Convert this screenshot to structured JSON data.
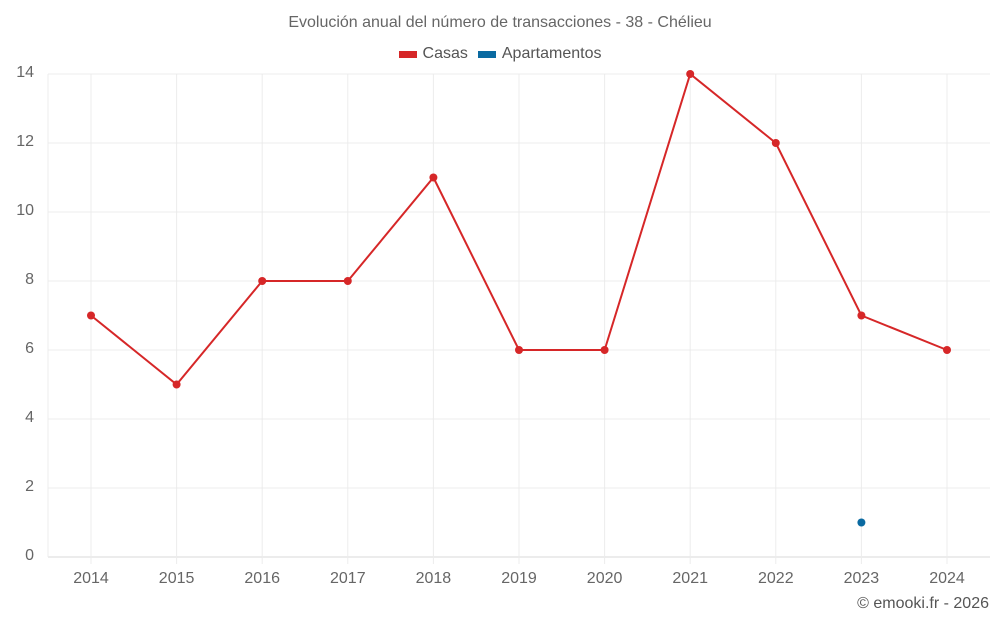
{
  "title": "Evolución anual del número de transacciones - 38 - Chélieu",
  "legend": [
    {
      "label": "Casas",
      "color": "#d62728"
    },
    {
      "label": "Apartamentos",
      "color": "#0a6aa1"
    }
  ],
  "credit": "© emooki.fr - 2026",
  "y_ticks": [
    "0",
    "2",
    "4",
    "6",
    "8",
    "10",
    "12",
    "14"
  ],
  "x_ticks": [
    "2014",
    "2015",
    "2016",
    "2017",
    "2018",
    "2019",
    "2020",
    "2021",
    "2022",
    "2023",
    "2024"
  ],
  "chart_data": {
    "type": "line",
    "title": "Evolución anual del número de transacciones - 38 - Chélieu",
    "xlabel": "",
    "ylabel": "",
    "categories": [
      "2014",
      "2015",
      "2016",
      "2017",
      "2018",
      "2019",
      "2020",
      "2021",
      "2022",
      "2023",
      "2024"
    ],
    "series": [
      {
        "name": "Casas",
        "color": "#d62728",
        "values": [
          7,
          5,
          8,
          8,
          11,
          6,
          6,
          14,
          12,
          7,
          6
        ]
      },
      {
        "name": "Apartamentos",
        "color": "#0a6aa1",
        "values": [
          null,
          null,
          null,
          null,
          null,
          null,
          null,
          null,
          null,
          1,
          null
        ]
      }
    ],
    "ylim": [
      0,
      14
    ],
    "y_tick_step": 2,
    "grid": true,
    "legend_position": "top"
  }
}
